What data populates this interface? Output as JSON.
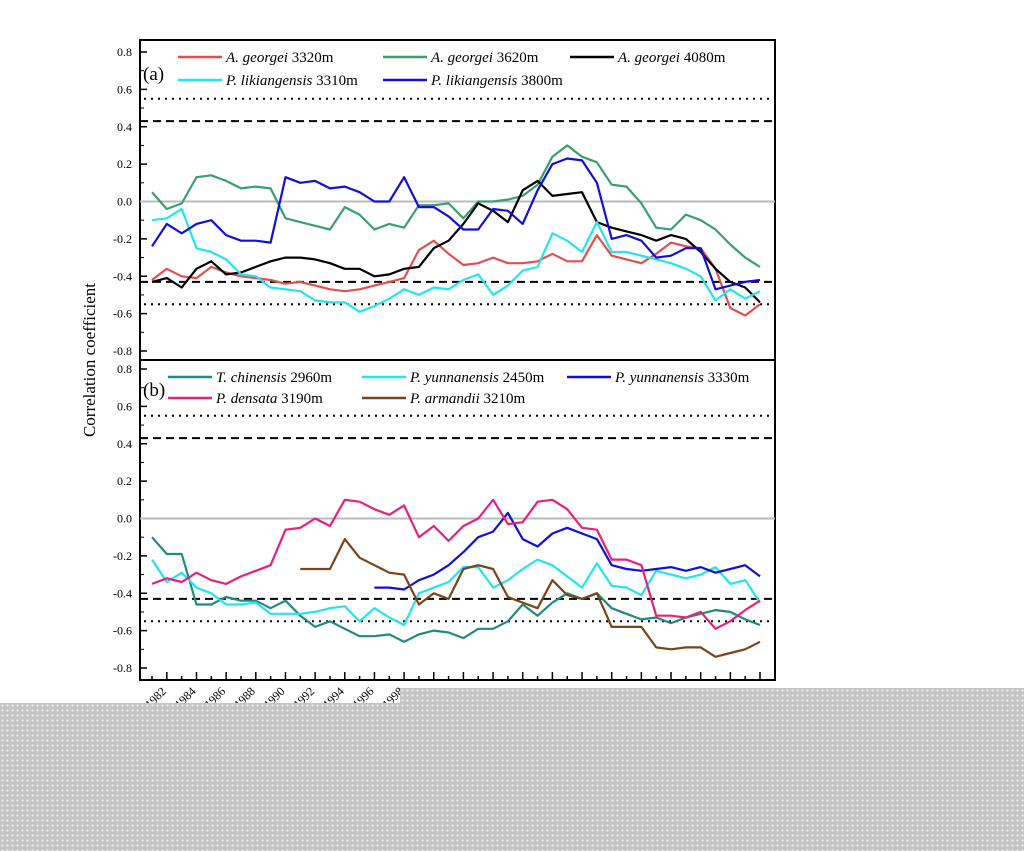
{
  "chart_data": [
    {
      "type": "line",
      "panel_label": "(a)",
      "ylabel": "Correlation coefficient",
      "ylim": [
        -0.8,
        0.8
      ],
      "yticks": [
        "0.8",
        "0.6",
        "0.4",
        "0.2",
        "0.0",
        "-0.2",
        "-0.4",
        "-0.6",
        "-0.8"
      ],
      "reference_lines": {
        "zero": 0,
        "dashed": [
          0.43,
          -0.43
        ],
        "dotted": [
          0.55,
          -0.55
        ]
      },
      "x_start": 1981,
      "x_end": 2022,
      "series": [
        {
          "name": "A. georgei 3320m",
          "species": "A. georgei",
          "elev": " 3320m",
          "color": "#e05050",
          "values": [
            -0.42,
            -0.36,
            -0.4,
            -0.41,
            -0.35,
            -0.38,
            -0.4,
            -0.41,
            -0.42,
            -0.44,
            -0.43,
            -0.45,
            -0.47,
            -0.48,
            -0.47,
            -0.45,
            -0.43,
            -0.41,
            -0.26,
            -0.21,
            -0.28,
            -0.34,
            -0.33,
            -0.3,
            -0.33,
            -0.33,
            -0.32,
            -0.28,
            -0.32,
            -0.32,
            -0.18,
            -0.29,
            -0.31,
            -0.33,
            -0.28,
            -0.22,
            -0.24,
            -0.25,
            -0.36,
            -0.57,
            -0.61,
            -0.55
          ]
        },
        {
          "name": "A. georgei 3620m",
          "species": "A. georgei",
          "elev": " 3620m",
          "color": "#3a9e6e",
          "values": [
            0.05,
            -0.04,
            -0.01,
            0.13,
            0.14,
            0.11,
            0.07,
            0.08,
            0.07,
            -0.09,
            -0.11,
            -0.13,
            -0.15,
            -0.03,
            -0.07,
            -0.15,
            -0.12,
            -0.14,
            -0.02,
            -0.02,
            -0.01,
            -0.09,
            0.0,
            0.0,
            0.01,
            0.03,
            0.09,
            0.24,
            0.3,
            0.24,
            0.21,
            0.09,
            0.08,
            -0.01,
            -0.14,
            -0.15,
            -0.07,
            -0.1,
            -0.15,
            -0.23,
            -0.3,
            -0.35
          ]
        },
        {
          "name": "A. georgei 4080m",
          "species": "A. georgei",
          "elev": " 4080m",
          "color": "#000000",
          "values": [
            -0.43,
            -0.41,
            -0.46,
            -0.36,
            -0.32,
            -0.39,
            -0.38,
            -0.35,
            -0.32,
            -0.3,
            -0.3,
            -0.31,
            -0.33,
            -0.36,
            -0.36,
            -0.4,
            -0.39,
            -0.36,
            -0.35,
            -0.25,
            -0.21,
            -0.12,
            -0.01,
            -0.05,
            -0.11,
            0.06,
            0.11,
            0.03,
            0.04,
            0.05,
            -0.11,
            -0.14,
            -0.16,
            -0.18,
            -0.21,
            -0.18,
            -0.2,
            -0.27,
            -0.36,
            -0.43,
            -0.46,
            -0.54
          ]
        },
        {
          "name": "P. likiangensis 3310m",
          "species": "P. likiangensis",
          "elev": " 3310m",
          "color": "#22e5ee",
          "values": [
            -0.1,
            -0.09,
            -0.04,
            -0.25,
            -0.27,
            -0.31,
            -0.39,
            -0.4,
            -0.46,
            -0.47,
            -0.48,
            -0.53,
            -0.54,
            -0.54,
            -0.59,
            -0.56,
            -0.52,
            -0.47,
            -0.5,
            -0.46,
            -0.47,
            -0.42,
            -0.39,
            -0.5,
            -0.45,
            -0.37,
            -0.35,
            -0.17,
            -0.21,
            -0.27,
            -0.11,
            -0.27,
            -0.27,
            -0.29,
            -0.31,
            -0.33,
            -0.36,
            -0.4,
            -0.53,
            -0.47,
            -0.52,
            -0.48
          ]
        },
        {
          "name": "P. likiangensis 3800m",
          "species": "P. likiangensis",
          "elev": " 3800m",
          "color": "#1010d8",
          "values": [
            -0.24,
            -0.12,
            -0.17,
            -0.12,
            -0.1,
            -0.18,
            -0.21,
            -0.21,
            -0.22,
            0.13,
            0.1,
            0.11,
            0.07,
            0.08,
            0.05,
            0.0,
            0.0,
            0.13,
            -0.03,
            -0.03,
            -0.08,
            -0.15,
            -0.15,
            -0.04,
            -0.05,
            -0.12,
            0.06,
            0.2,
            0.23,
            0.22,
            0.1,
            -0.2,
            -0.18,
            -0.21,
            -0.3,
            -0.29,
            -0.25,
            -0.25,
            -0.47,
            -0.45,
            -0.43,
            -0.42
          ]
        }
      ]
    },
    {
      "type": "line",
      "panel_label": "(b)",
      "ylim": [
        -0.8,
        0.8
      ],
      "yticks": [
        "0.8",
        "0.6",
        "0.4",
        "0.2",
        "0.0",
        "-0.2",
        "-0.4",
        "-0.6",
        "-0.8"
      ],
      "reference_lines": {
        "zero": 0,
        "dashed": [
          0.43,
          -0.43
        ],
        "dotted": [
          0.55,
          -0.55
        ]
      },
      "x_start": 1981,
      "x_end": 2022,
      "xtick_labels": [
        "1982",
        "1984",
        "1986",
        "1988",
        "1990",
        "1992",
        "1994",
        "1996",
        "1998"
      ],
      "series": [
        {
          "name": "T. chinensis 2960m",
          "species": "T. chinensis",
          "elev": " 2960m",
          "color": "#1f8a80",
          "values": [
            -0.1,
            -0.19,
            -0.19,
            -0.46,
            -0.46,
            -0.42,
            -0.44,
            -0.44,
            -0.48,
            -0.44,
            -0.52,
            -0.58,
            -0.55,
            -0.59,
            -0.63,
            -0.63,
            -0.62,
            -0.66,
            -0.62,
            -0.6,
            -0.61,
            -0.64,
            -0.59,
            -0.59,
            -0.55,
            -0.46,
            -0.52,
            -0.45,
            -0.4,
            -0.43,
            -0.4,
            -0.48,
            -0.51,
            -0.54,
            -0.53,
            -0.56,
            -0.53,
            -0.51,
            -0.49,
            -0.5,
            -0.54,
            -0.57
          ]
        },
        {
          "name": "P. yunnanensis 2450m",
          "species": "P. yunnanensis",
          "elev": " 2450m",
          "color": "#22e5ee",
          "values": [
            -0.22,
            -0.34,
            -0.29,
            -0.37,
            -0.4,
            -0.46,
            -0.46,
            -0.45,
            -0.51,
            -0.51,
            -0.51,
            -0.5,
            -0.48,
            -0.47,
            -0.55,
            -0.48,
            -0.53,
            -0.57,
            -0.4,
            -0.37,
            -0.34,
            -0.26,
            -0.26,
            -0.37,
            -0.33,
            -0.27,
            -0.22,
            -0.25,
            -0.31,
            -0.37,
            -0.24,
            -0.36,
            -0.37,
            -0.41,
            -0.28,
            -0.3,
            -0.32,
            -0.3,
            -0.26,
            -0.35,
            -0.33,
            -0.45
          ]
        },
        {
          "name": "P. yunnanensis 3330m",
          "species": "P. yunnanensis",
          "elev": " 3330m",
          "color": "#1010d8",
          "values": [
            null,
            null,
            null,
            null,
            null,
            null,
            null,
            null,
            null,
            null,
            null,
            null,
            null,
            null,
            null,
            -0.37,
            -0.37,
            -0.38,
            -0.33,
            -0.3,
            -0.25,
            -0.18,
            -0.1,
            -0.07,
            0.03,
            -0.11,
            -0.15,
            -0.08,
            -0.05,
            -0.08,
            -0.11,
            -0.25,
            -0.27,
            -0.28,
            -0.27,
            -0.26,
            -0.28,
            -0.26,
            -0.29,
            -0.27,
            -0.25,
            -0.31
          ]
        },
        {
          "name": "P. densata 3190m",
          "species": "P. densata",
          "elev": " 3190m",
          "color": "#e8207a",
          "values": [
            -0.35,
            -0.32,
            -0.34,
            -0.29,
            -0.33,
            -0.35,
            -0.31,
            -0.28,
            -0.25,
            -0.06,
            -0.05,
            0.0,
            -0.04,
            0.1,
            0.09,
            0.05,
            0.02,
            0.07,
            -0.1,
            -0.04,
            -0.12,
            -0.04,
            0.0,
            0.1,
            -0.03,
            -0.02,
            0.09,
            0.1,
            0.05,
            -0.05,
            -0.06,
            -0.22,
            -0.22,
            -0.25,
            -0.52,
            -0.52,
            -0.53,
            -0.5,
            -0.59,
            -0.55,
            -0.49,
            -0.44
          ]
        },
        {
          "name": "P. armandii 3210m",
          "species": "P. armandii",
          "elev": " 3210m",
          "color": "#7a4416",
          "values": [
            null,
            null,
            null,
            null,
            null,
            null,
            null,
            null,
            null,
            null,
            -0.27,
            -0.27,
            -0.27,
            -0.11,
            -0.21,
            -0.25,
            -0.29,
            -0.3,
            -0.46,
            -0.4,
            -0.43,
            -0.27,
            -0.25,
            -0.27,
            -0.42,
            -0.45,
            -0.48,
            -0.33,
            -0.41,
            -0.43,
            -0.4,
            -0.58,
            -0.58,
            -0.58,
            -0.69,
            -0.7,
            -0.69,
            -0.69,
            -0.74,
            -0.72,
            -0.7,
            -0.66
          ]
        }
      ]
    }
  ]
}
